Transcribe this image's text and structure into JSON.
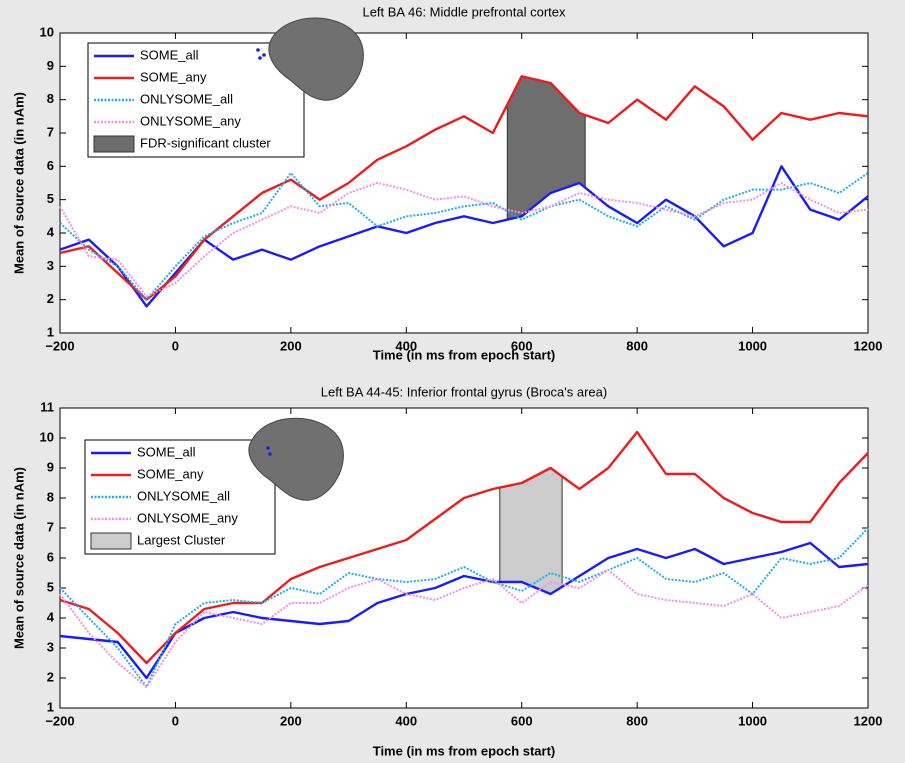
{
  "chart_data": [
    {
      "type": "line",
      "title": "Left BA 46: Middle prefrontal cortex",
      "xlabel": "Time (in ms from epoch start)",
      "ylabel": "Mean of source data (in nAm)",
      "x": [
        -200,
        -150,
        -100,
        -50,
        0,
        50,
        100,
        150,
        200,
        250,
        300,
        350,
        400,
        450,
        500,
        550,
        600,
        650,
        700,
        750,
        800,
        850,
        900,
        950,
        1000,
        1050,
        1100,
        1150,
        1200
      ],
      "series": [
        {
          "name": "SOME_all",
          "color": "#1a1aff",
          "style": "solid",
          "values": [
            3.5,
            3.8,
            3.0,
            1.8,
            2.8,
            3.8,
            3.2,
            3.5,
            3.2,
            3.6,
            3.9,
            4.2,
            4.0,
            4.3,
            4.5,
            4.3,
            4.5,
            5.2,
            5.5,
            4.8,
            4.3,
            5.0,
            4.5,
            3.6,
            4.0,
            6.0,
            4.7,
            4.4,
            5.1
          ]
        },
        {
          "name": "SOME_any",
          "color": "#ee1c1c",
          "style": "solid",
          "values": [
            3.4,
            3.6,
            2.8,
            2.0,
            2.7,
            3.8,
            4.5,
            5.2,
            5.6,
            5.0,
            5.5,
            6.2,
            6.6,
            7.1,
            7.5,
            7.0,
            8.7,
            8.5,
            7.6,
            7.3,
            8.0,
            7.4,
            8.4,
            7.8,
            6.8,
            7.6,
            7.4,
            7.6,
            7.5
          ]
        },
        {
          "name": "ONLYSOME_all",
          "color": "#1ab0f0",
          "style": "dotted",
          "values": [
            4.3,
            3.5,
            3.0,
            2.0,
            3.0,
            3.9,
            4.3,
            4.6,
            5.8,
            4.8,
            4.9,
            4.2,
            4.5,
            4.6,
            4.8,
            4.9,
            4.4,
            4.8,
            5.0,
            4.5,
            4.2,
            4.8,
            4.4,
            5.0,
            5.3,
            5.3,
            5.5,
            5.2,
            5.8
          ]
        },
        {
          "name": "ONLYSOME_any",
          "color": "#f58ee8",
          "style": "dotted",
          "values": [
            4.8,
            3.3,
            3.2,
            2.1,
            2.5,
            3.3,
            4.0,
            4.4,
            4.8,
            4.6,
            5.2,
            5.5,
            5.3,
            5.0,
            5.1,
            4.8,
            4.6,
            4.8,
            5.2,
            5.0,
            4.9,
            4.7,
            4.5,
            4.9,
            5.0,
            5.5,
            5.0,
            4.6,
            4.7
          ]
        }
      ],
      "cluster": {
        "name": "FDR-significant cluster",
        "color": "#6e6e6e",
        "x": [
          575,
          710
        ]
      },
      "xlim": [
        -200,
        1200
      ],
      "ylim": [
        1,
        10
      ],
      "xticks": [
        {
          "value": -200,
          "label": "−200"
        },
        0,
        200,
        400,
        600,
        800,
        1000,
        1200
      ],
      "yticks": [
        1,
        2,
        3,
        4,
        5,
        6,
        7,
        8,
        9,
        10
      ]
    },
    {
      "type": "line",
      "title": "Left BA 44-45: Inferior frontal gyrus (Broca's area)",
      "xlabel": "Time (in ms from epoch start)",
      "ylabel": "Mean of source data (in nAm)",
      "x": [
        -200,
        -150,
        -100,
        -50,
        0,
        50,
        100,
        150,
        200,
        250,
        300,
        350,
        400,
        450,
        500,
        550,
        600,
        650,
        700,
        750,
        800,
        850,
        900,
        950,
        1000,
        1050,
        1100,
        1150,
        1200
      ],
      "series": [
        {
          "name": "SOME_all",
          "color": "#1a1aff",
          "style": "solid",
          "values": [
            3.4,
            3.3,
            3.2,
            2.0,
            3.5,
            4.0,
            4.2,
            4.0,
            3.9,
            3.8,
            3.9,
            4.5,
            4.8,
            5.0,
            5.4,
            5.2,
            5.2,
            4.8,
            5.4,
            6.0,
            6.3,
            6.0,
            6.3,
            5.8,
            6.0,
            6.2,
            6.5,
            5.7,
            5.8
          ]
        },
        {
          "name": "SOME_any",
          "color": "#ee1c1c",
          "style": "solid",
          "values": [
            4.6,
            4.3,
            3.5,
            2.5,
            3.5,
            4.3,
            4.5,
            4.5,
            5.3,
            5.7,
            6.0,
            6.3,
            6.6,
            7.3,
            8.0,
            8.3,
            8.5,
            9.0,
            8.3,
            9.0,
            10.2,
            8.8,
            8.8,
            8.0,
            7.5,
            7.2,
            7.2,
            8.5,
            9.5
          ]
        },
        {
          "name": "ONLYSOME_all",
          "color": "#1ab0f0",
          "style": "dotted",
          "values": [
            5.0,
            4.0,
            3.0,
            1.7,
            3.8,
            4.5,
            4.6,
            4.5,
            5.0,
            4.8,
            5.5,
            5.3,
            5.2,
            5.3,
            5.7,
            5.2,
            4.9,
            5.5,
            5.2,
            5.6,
            6.0,
            5.3,
            5.2,
            5.5,
            4.8,
            6.0,
            5.8,
            6.0,
            7.0
          ]
        },
        {
          "name": "ONLYSOME_any",
          "color": "#f58ee8",
          "style": "dotted",
          "values": [
            4.8,
            3.5,
            2.5,
            1.7,
            3.2,
            4.2,
            4.0,
            3.8,
            4.5,
            4.5,
            5.0,
            5.3,
            4.8,
            4.6,
            5.0,
            5.3,
            4.5,
            5.2,
            5.0,
            5.6,
            4.8,
            4.6,
            4.5,
            4.4,
            4.8,
            4.0,
            4.2,
            4.4,
            5.1
          ]
        }
      ],
      "cluster": {
        "name": "Largest Cluster",
        "color": "#cccccc",
        "x": [
          562,
          670
        ]
      },
      "xlim": [
        -200,
        1200
      ],
      "ylim": [
        1,
        11
      ],
      "xticks": [
        {
          "value": -200,
          "label": "−200"
        },
        0,
        200,
        400,
        600,
        800,
        1000,
        1200
      ],
      "yticks": [
        1,
        2,
        3,
        4,
        5,
        6,
        7,
        8,
        9,
        10,
        11
      ]
    }
  ]
}
